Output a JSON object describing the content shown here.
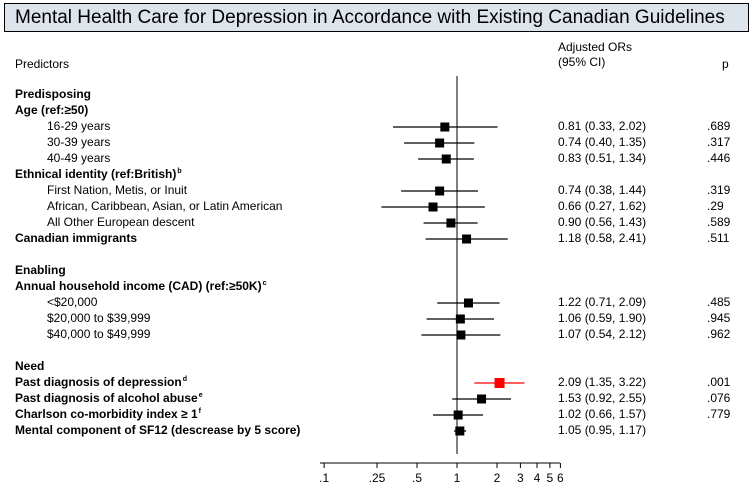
{
  "title": "Mental Health Care for Depression in Accordance with Existing Canadian Guidelines",
  "headers": {
    "predictors": "Predictors",
    "or_line1": "Adjusted ORs",
    "or_line2": "(95% CI)",
    "p": "p"
  },
  "colors": {
    "title_bg": "#dde4ec",
    "marker_default": "#000000",
    "marker_highlight": "#ff0000"
  },
  "chart_data": {
    "type": "forest",
    "x_scale": "log",
    "reference_line": 1,
    "xticks": [
      0.1,
      0.25,
      0.5,
      1,
      2,
      3,
      4,
      5,
      6
    ],
    "xtick_labels": [
      ".1",
      ".25",
      ".5",
      "1",
      "2",
      "3",
      "4",
      "5",
      "6"
    ],
    "rows": [
      {
        "label": "Predisposing",
        "kind": "section"
      },
      {
        "label": "Age (ref:",
        "label_ref": "≥50)",
        "kind": "group"
      },
      {
        "label": "16-29 years",
        "kind": "item",
        "or": 0.81,
        "lo": 0.33,
        "hi": 2.02,
        "ci_text": "0.81 (0.33, 2.02)",
        "p": ".689"
      },
      {
        "label": "30-39 years",
        "kind": "item",
        "or": 0.74,
        "lo": 0.4,
        "hi": 1.35,
        "ci_text": "0.74 (0.40, 1.35)",
        "p": ".317"
      },
      {
        "label": "40-49 years",
        "kind": "item",
        "or": 0.83,
        "lo": 0.51,
        "hi": 1.34,
        "ci_text": "0.83 (0.51, 1.34)",
        "p": ".446"
      },
      {
        "label": "Ethnical identity (ref:British)",
        "sup": "b",
        "kind": "group"
      },
      {
        "label": "First Nation, Metis, or Inuit",
        "kind": "item",
        "or": 0.74,
        "lo": 0.38,
        "hi": 1.44,
        "ci_text": "0.74 (0.38, 1.44)",
        "p": ".319"
      },
      {
        "label": "African, Caribbean, Asian, or Latin American",
        "kind": "item",
        "or": 0.66,
        "lo": 0.27,
        "hi": 1.62,
        "ci_text": "0.66 (0.27, 1.62)",
        "p": ".29"
      },
      {
        "label": "All Other European descent",
        "kind": "item",
        "or": 0.9,
        "lo": 0.56,
        "hi": 1.43,
        "ci_text": "0.90 (0.56, 1.43)",
        "p": ".589"
      },
      {
        "label": "Canadian immigrants",
        "kind": "group-item",
        "or": 1.18,
        "lo": 0.58,
        "hi": 2.41,
        "ci_text": "1.18 (0.58, 2.41)",
        "p": ".511"
      },
      {
        "label": "",
        "kind": "spacer"
      },
      {
        "label": "Enabling",
        "kind": "section"
      },
      {
        "label": "Annual household income (CAD) (ref:",
        "label_ref": "≥50K)",
        "sup": "c",
        "kind": "group"
      },
      {
        "label": "<$20,000",
        "kind": "item",
        "or": 1.22,
        "lo": 0.71,
        "hi": 2.09,
        "ci_text": "1.22 (0.71, 2.09)",
        "p": ".485"
      },
      {
        "label": "$20,000 to $39,999",
        "kind": "item",
        "or": 1.06,
        "lo": 0.59,
        "hi": 1.9,
        "ci_text": "1.06 (0.59, 1.90)",
        "p": ".945"
      },
      {
        "label": "$40,000 to $49,999",
        "kind": "item",
        "or": 1.07,
        "lo": 0.54,
        "hi": 2.12,
        "ci_text": "1.07 (0.54, 2.12)",
        "p": ".962"
      },
      {
        "label": "",
        "kind": "spacer"
      },
      {
        "label": "Need",
        "kind": "section"
      },
      {
        "label": "Past diagnosis of depression",
        "sup": "d",
        "kind": "group-item",
        "or": 2.09,
        "lo": 1.35,
        "hi": 3.22,
        "ci_text": "2.09 (1.35, 3.22)",
        "p": ".001",
        "highlight": true
      },
      {
        "label": "Past diagnosis of alcohol abuse",
        "sup": "e",
        "kind": "group-item",
        "or": 1.53,
        "lo": 0.92,
        "hi": 2.55,
        "ci_text": "1.53 (0.92, 2.55)",
        "p": ".076"
      },
      {
        "label": "Charlson co-morbidity index ≥ 1",
        "sup": "f",
        "kind": "group-item",
        "or": 1.02,
        "lo": 0.66,
        "hi": 1.57,
        "ci_text": "1.02 (0.66, 1.57)",
        "p": ".779"
      },
      {
        "label": "Mental component of SF12 (descrease by 5 score)",
        "kind": "group-item",
        "or": 1.05,
        "lo": 0.95,
        "hi": 1.17,
        "ci_text": "1.05 (0.95, 1.17)",
        "p": ""
      }
    ]
  }
}
